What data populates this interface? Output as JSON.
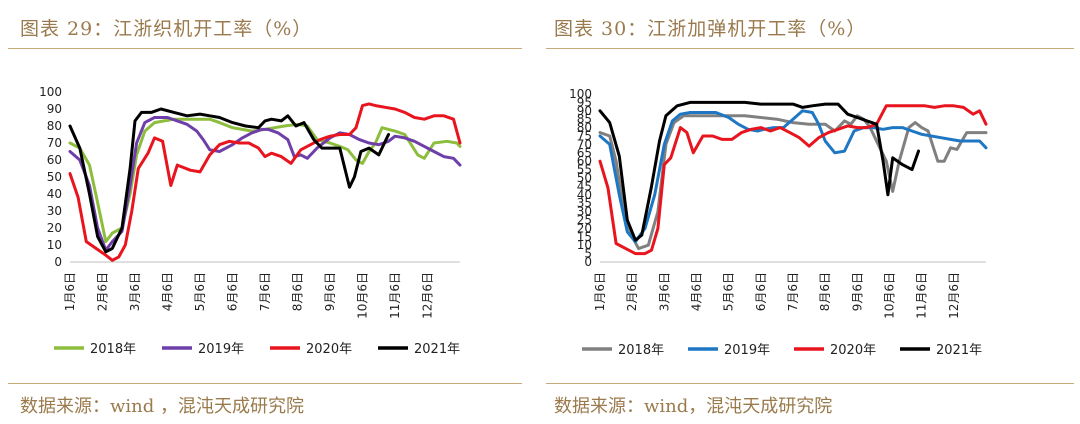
{
  "charts": [
    {
      "title": "图表 29：江浙织机开工率（%）",
      "source": "数据来源：wind ，混沌天成研究院"
    },
    {
      "title": "图表 30：江浙加弹机开工率（%）",
      "source": "数据来源：wind，混沌天成研究院"
    }
  ],
  "chart_data": [
    {
      "type": "line",
      "title": "",
      "xlabel": "",
      "ylabel": "",
      "ylim": [
        0,
        100
      ],
      "yticks": [
        0,
        10,
        20,
        30,
        40,
        50,
        60,
        70,
        80,
        90,
        100
      ],
      "x_ticks": [
        "1月6日",
        "2月6日",
        "3月6日",
        "4月6日",
        "5月6日",
        "6月6日",
        "7月6日",
        "8月6日",
        "9月6日",
        "10月6日",
        "11月6日",
        "12月6日"
      ],
      "x_range": [
        1,
        13
      ],
      "grid": false,
      "legend_position": "bottom",
      "series": [
        {
          "name": "2018年",
          "color": "#8dbd3d",
          "x": [
            1.0,
            1.3,
            1.6,
            1.85,
            2.1,
            2.3,
            2.6,
            2.85,
            3.05,
            3.3,
            3.6,
            3.9,
            4.2,
            4.6,
            5.0,
            5.3,
            5.6,
            6.0,
            6.3,
            6.6,
            7.0,
            7.3,
            7.6,
            8.0,
            8.3,
            8.6,
            9.0,
            9.3,
            9.55,
            9.8,
            10.0,
            10.2,
            10.4,
            10.6,
            10.8,
            11.0,
            11.3,
            11.5,
            11.7,
            11.9,
            12.2,
            12.6,
            12.9,
            13.0
          ],
          "y": [
            70,
            67,
            57,
            35,
            12,
            17,
            20,
            40,
            63,
            77,
            82,
            83,
            84,
            84,
            84,
            84,
            82,
            79,
            78,
            77,
            78,
            79,
            80,
            81,
            80,
            72,
            70,
            68,
            66,
            60,
            58,
            65,
            70,
            79,
            78,
            77,
            75,
            69,
            63,
            61,
            70,
            71,
            70,
            68
          ]
        },
        {
          "name": "2019年",
          "color": "#6e3fa8",
          "x": [
            1.0,
            1.3,
            1.6,
            1.85,
            2.1,
            2.3,
            2.6,
            2.85,
            3.05,
            3.3,
            3.6,
            4.0,
            4.3,
            4.6,
            4.9,
            5.1,
            5.3,
            5.6,
            6.0,
            6.3,
            6.6,
            6.9,
            7.1,
            7.4,
            7.7,
            7.9,
            8.1,
            8.3,
            8.6,
            9.0,
            9.3,
            9.6,
            9.9,
            10.2,
            10.5,
            10.8,
            11.0,
            11.3,
            11.6,
            11.9,
            12.2,
            12.5,
            12.8,
            13.0
          ],
          "y": [
            65,
            60,
            45,
            20,
            7,
            12,
            18,
            45,
            70,
            82,
            85,
            85,
            83,
            81,
            77,
            72,
            66,
            65,
            69,
            73,
            76,
            78,
            78,
            76,
            72,
            62,
            63,
            61,
            67,
            73,
            76,
            75,
            72,
            70,
            69,
            71,
            74,
            73,
            71,
            68,
            65,
            62,
            61,
            57
          ]
        },
        {
          "name": "2020年",
          "color": "#e8141e",
          "x": [
            1.0,
            1.25,
            1.5,
            1.8,
            2.1,
            2.3,
            2.5,
            2.7,
            2.9,
            3.1,
            3.4,
            3.6,
            3.85,
            4.1,
            4.3,
            4.7,
            5.0,
            5.3,
            5.6,
            5.9,
            6.2,
            6.5,
            6.8,
            7.0,
            7.2,
            7.5,
            7.8,
            8.1,
            8.4,
            8.7,
            9.0,
            9.3,
            9.6,
            9.8,
            10.0,
            10.2,
            10.4,
            10.7,
            11.0,
            11.3,
            11.6,
            11.9,
            12.2,
            12.5,
            12.8,
            13.0
          ],
          "y": [
            52,
            38,
            12,
            8,
            4,
            1,
            3,
            10,
            30,
            55,
            64,
            73,
            71,
            45,
            57,
            54,
            53,
            63,
            69,
            71,
            70,
            70,
            67,
            62,
            64,
            62,
            58,
            66,
            69,
            72,
            74,
            75,
            75,
            79,
            92,
            93,
            92,
            91,
            90,
            88,
            85,
            84,
            86,
            86,
            84,
            70
          ]
        },
        {
          "name": "2021年",
          "color": "#000000",
          "x": [
            1.0,
            1.3,
            1.6,
            1.85,
            2.1,
            2.3,
            2.6,
            2.85,
            3.0,
            3.2,
            3.5,
            3.8,
            4.2,
            4.6,
            5.0,
            5.3,
            5.6,
            6.0,
            6.4,
            6.8,
            7.0,
            7.2,
            7.5,
            7.7,
            7.95,
            8.2,
            8.5,
            8.75,
            9.0,
            9.3,
            9.6,
            9.75,
            9.95,
            10.2,
            10.5,
            10.8
          ],
          "y": [
            80,
            67,
            40,
            15,
            6,
            8,
            20,
            55,
            83,
            88,
            88,
            90,
            88,
            86,
            87,
            86,
            85,
            82,
            80,
            79,
            83,
            84,
            83,
            86,
            80,
            82,
            72,
            67,
            67,
            67,
            44,
            50,
            65,
            67,
            63,
            75
          ]
        }
      ]
    },
    {
      "type": "line",
      "title": "",
      "xlabel": "",
      "ylabel": "",
      "ylim": [
        0,
        100
      ],
      "yticks": [
        0,
        5,
        10,
        15,
        20,
        25,
        30,
        35,
        40,
        45,
        50,
        55,
        60,
        65,
        70,
        75,
        80,
        85,
        90,
        95,
        100
      ],
      "x_ticks": [
        "1月6日",
        "2月6日",
        "3月6日",
        "4月6日",
        "5月6日",
        "6月6日",
        "7月6日",
        "8月6日",
        "9月6日",
        "10月6日",
        "11月6日",
        "12月6日"
      ],
      "x_range": [
        1,
        13
      ],
      "grid": false,
      "legend_position": "bottom",
      "series": [
        {
          "name": "2018年",
          "color": "#808080",
          "x": [
            1.0,
            1.3,
            1.5,
            1.75,
            2.0,
            2.2,
            2.5,
            2.8,
            3.05,
            3.3,
            3.6,
            4.0,
            4.5,
            5.0,
            5.5,
            6.0,
            6.5,
            7.0,
            7.5,
            8.0,
            8.3,
            8.6,
            8.8,
            9.0,
            9.2,
            9.4,
            9.7,
            9.9,
            10.1,
            10.3,
            10.6,
            10.8,
            11.0,
            11.2,
            11.5,
            11.7,
            11.9,
            12.1,
            12.4,
            12.7,
            13.0
          ],
          "y": [
            77,
            75,
            60,
            30,
            15,
            8,
            10,
            30,
            70,
            83,
            87,
            87,
            87,
            87,
            87,
            86,
            85,
            83,
            82,
            82,
            78,
            84,
            82,
            87,
            85,
            80,
            68,
            60,
            42,
            60,
            80,
            83,
            80,
            78,
            60,
            60,
            68,
            67,
            77,
            77,
            77
          ]
        },
        {
          "name": "2019年",
          "color": "#1f77c4",
          "x": [
            1.0,
            1.3,
            1.6,
            1.85,
            2.1,
            2.4,
            2.7,
            3.0,
            3.25,
            3.5,
            3.8,
            4.2,
            4.6,
            5.0,
            5.3,
            5.6,
            5.9,
            6.1,
            6.4,
            6.7,
            7.0,
            7.3,
            7.6,
            7.8,
            8.0,
            8.3,
            8.6,
            8.9,
            9.2,
            9.5,
            9.8,
            10.1,
            10.4,
            10.7,
            11.0,
            11.3,
            11.6,
            11.9,
            12.2,
            12.5,
            12.8,
            13.0
          ],
          "y": [
            75,
            70,
            40,
            18,
            12,
            20,
            40,
            70,
            84,
            88,
            89,
            89,
            89,
            86,
            82,
            79,
            78,
            79,
            80,
            80,
            85,
            90,
            89,
            82,
            72,
            65,
            66,
            78,
            80,
            80,
            79,
            80,
            80,
            78,
            76,
            75,
            74,
            73,
            72,
            72,
            72,
            68
          ]
        },
        {
          "name": "2020年",
          "color": "#e8141e",
          "x": [
            1.0,
            1.25,
            1.5,
            1.8,
            2.1,
            2.4,
            2.6,
            2.8,
            3.0,
            3.2,
            3.5,
            3.7,
            3.9,
            4.2,
            4.5,
            4.8,
            5.1,
            5.4,
            5.7,
            6.0,
            6.3,
            6.6,
            6.9,
            7.2,
            7.5,
            7.8,
            8.1,
            8.4,
            8.7,
            9.0,
            9.3,
            9.6,
            9.9,
            10.2,
            10.5,
            10.8,
            11.1,
            11.4,
            11.7,
            12.0,
            12.3,
            12.6,
            12.8,
            13.0
          ],
          "y": [
            60,
            44,
            11,
            8,
            5,
            5,
            7,
            20,
            58,
            62,
            80,
            77,
            65,
            75,
            75,
            73,
            73,
            77,
            79,
            80,
            78,
            80,
            77,
            74,
            69,
            74,
            77,
            79,
            81,
            80,
            80,
            82,
            93,
            93,
            93,
            93,
            93,
            92,
            93,
            93,
            92,
            88,
            90,
            82
          ]
        },
        {
          "name": "2021年",
          "color": "#000000",
          "x": [
            1.0,
            1.3,
            1.6,
            1.85,
            2.1,
            2.3,
            2.6,
            2.85,
            3.05,
            3.4,
            3.8,
            4.2,
            4.6,
            5.0,
            5.5,
            6.0,
            6.5,
            7.0,
            7.3,
            7.6,
            8.0,
            8.4,
            8.7,
            9.0,
            9.3,
            9.6,
            9.8,
            9.95,
            10.1,
            10.4,
            10.7,
            10.9
          ],
          "y": [
            90,
            83,
            63,
            25,
            13,
            16,
            45,
            72,
            87,
            93,
            95,
            95,
            95,
            95,
            95,
            94,
            94,
            94,
            92,
            93,
            94,
            94,
            88,
            86,
            84,
            82,
            60,
            40,
            62,
            58,
            55,
            66
          ]
        }
      ]
    }
  ]
}
